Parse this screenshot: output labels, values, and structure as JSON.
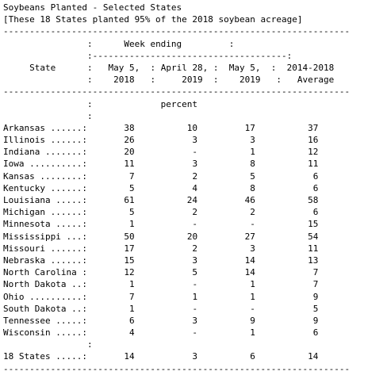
{
  "report": {
    "title": "Soybeans Planted - Selected States",
    "subtitle": "[These 18 States planted 95% of the 2018 soybean acreage]",
    "separator": "------------------------------------------------------------------",
    "header": {
      "week_ending": "Week ending",
      "state": "State",
      "col1": [
        "May 5,",
        "2018"
      ],
      "col2": [
        "April 28,",
        "2019"
      ],
      "col3": [
        "May 5,",
        "2019"
      ],
      "col4": [
        "2014-2018",
        "Average"
      ]
    },
    "unit": "percent",
    "rows": [
      {
        "state": "Arkansas",
        "may5_2018": "38",
        "apr28_2019": "10",
        "may5_2019": "17",
        "avg": "37"
      },
      {
        "state": "Illinois",
        "may5_2018": "26",
        "apr28_2019": "3",
        "may5_2019": "3",
        "avg": "16"
      },
      {
        "state": "Indiana",
        "may5_2018": "20",
        "apr28_2019": "-",
        "may5_2019": "1",
        "avg": "12"
      },
      {
        "state": "Iowa",
        "may5_2018": "11",
        "apr28_2019": "3",
        "may5_2019": "8",
        "avg": "11"
      },
      {
        "state": "Kansas",
        "may5_2018": "7",
        "apr28_2019": "2",
        "may5_2019": "5",
        "avg": "6"
      },
      {
        "state": "Kentucky",
        "may5_2018": "5",
        "apr28_2019": "4",
        "may5_2019": "8",
        "avg": "6"
      },
      {
        "state": "Louisiana",
        "may5_2018": "61",
        "apr28_2019": "24",
        "may5_2019": "46",
        "avg": "58"
      },
      {
        "state": "Michigan",
        "may5_2018": "5",
        "apr28_2019": "2",
        "may5_2019": "2",
        "avg": "6"
      },
      {
        "state": "Minnesota",
        "may5_2018": "1",
        "apr28_2019": "-",
        "may5_2019": "-",
        "avg": "15"
      },
      {
        "state": "Mississippi",
        "may5_2018": "50",
        "apr28_2019": "20",
        "may5_2019": "27",
        "avg": "54"
      },
      {
        "state": "Missouri",
        "may5_2018": "17",
        "apr28_2019": "2",
        "may5_2019": "3",
        "avg": "11"
      },
      {
        "state": "Nebraska",
        "may5_2018": "15",
        "apr28_2019": "3",
        "may5_2019": "14",
        "avg": "13"
      },
      {
        "state": "North Carolina",
        "may5_2018": "12",
        "apr28_2019": "5",
        "may5_2019": "14",
        "avg": "7"
      },
      {
        "state": "North Dakota",
        "may5_2018": "1",
        "apr28_2019": "-",
        "may5_2019": "1",
        "avg": "7"
      },
      {
        "state": "Ohio",
        "may5_2018": "7",
        "apr28_2019": "1",
        "may5_2019": "1",
        "avg": "9"
      },
      {
        "state": "South Dakota",
        "may5_2018": "1",
        "apr28_2019": "-",
        "may5_2019": "-",
        "avg": "5"
      },
      {
        "state": "Tennessee",
        "may5_2018": "6",
        "apr28_2019": "3",
        "may5_2019": "9",
        "avg": "9"
      },
      {
        "state": "Wisconsin",
        "may5_2018": "4",
        "apr28_2019": "-",
        "may5_2019": "1",
        "avg": "6"
      }
    ],
    "total": {
      "state": "18 States",
      "may5_2018": "14",
      "apr28_2019": "3",
      "may5_2019": "6",
      "avg": "14"
    }
  }
}
